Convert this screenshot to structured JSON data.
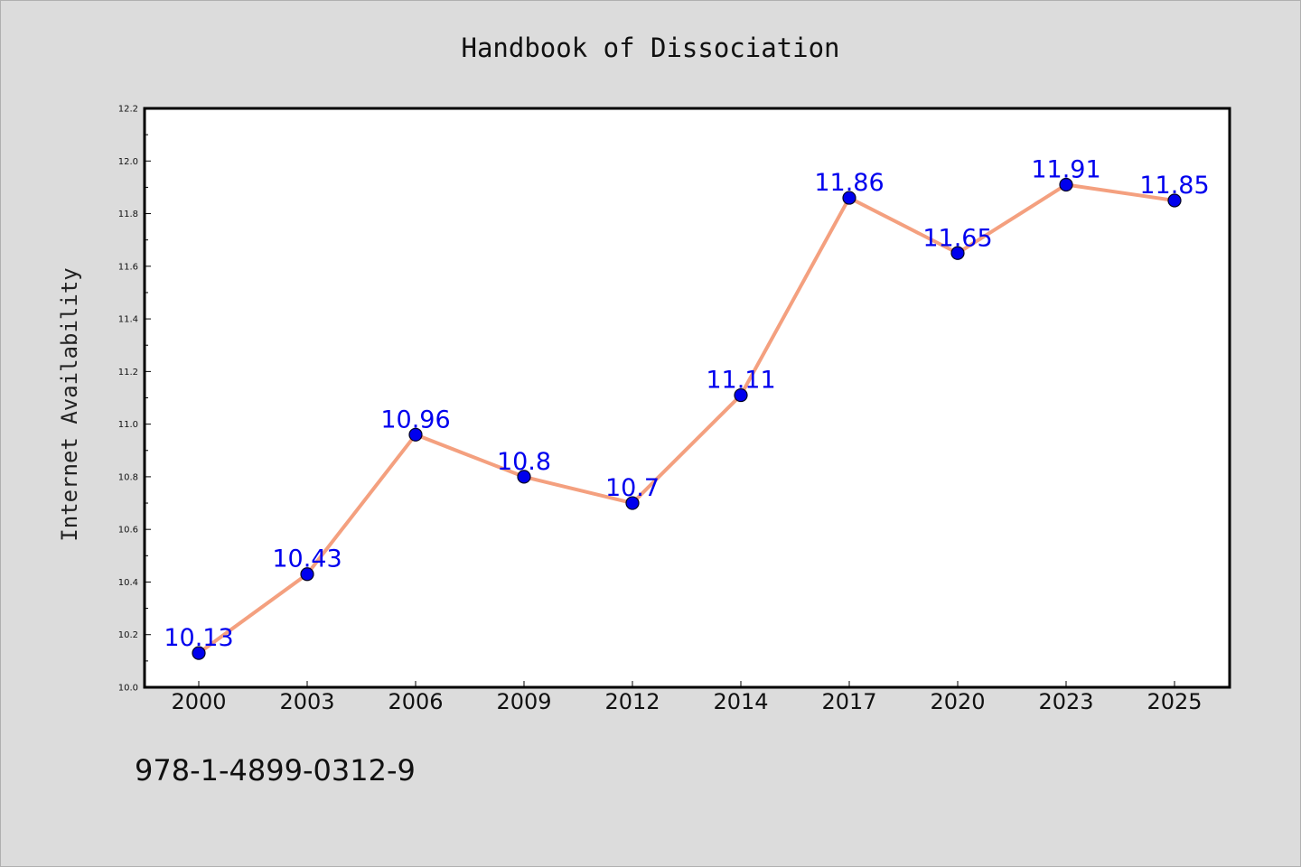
{
  "chart_data": {
    "type": "line",
    "title": "Handbook of Dissociation",
    "xlabel": "",
    "ylabel": "Internet Availability",
    "categories": [
      "2000",
      "2003",
      "2006",
      "2009",
      "2012",
      "2014",
      "2017",
      "2020",
      "2023",
      "2025"
    ],
    "series": [
      {
        "values": [
          10.13,
          10.43,
          10.96,
          10.8,
          10.7,
          11.11,
          11.86,
          11.65,
          11.91,
          11.85
        ],
        "data_labels": [
          "10.13",
          "10.43",
          "10.96",
          "10.8",
          "10.7",
          "11.11",
          "11.86",
          "11.65",
          "11.91",
          "11.85"
        ],
        "line_color": "#f4a07f",
        "marker_color": "#0000ee",
        "label_color": "#0000ee"
      }
    ],
    "ylim": [
      10.0,
      12.2
    ],
    "yticks": [
      "10.0",
      "10.2",
      "10.4",
      "10.6",
      "10.8",
      "11.0",
      "11.2",
      "11.4",
      "11.6",
      "11.8",
      "12.0",
      "12.2"
    ],
    "grid": false,
    "legend": "none"
  },
  "footer": {
    "isbn": "978-1-4899-0312-9"
  },
  "colors": {
    "background": "#dcdcdc",
    "plot_background": "#ffffff",
    "frame": "#000000"
  }
}
